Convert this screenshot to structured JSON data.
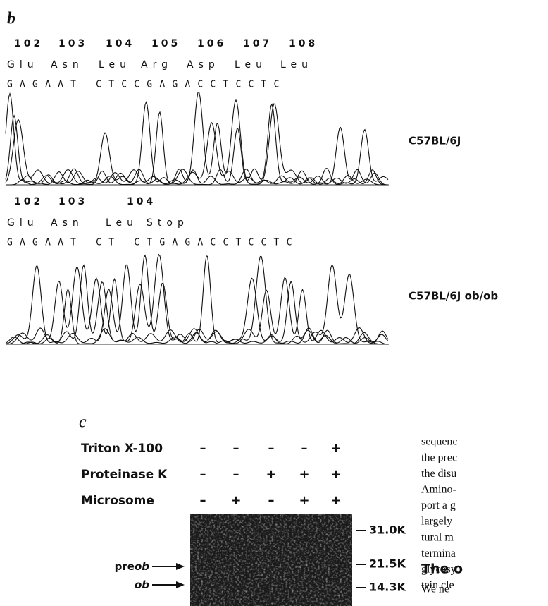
{
  "panel_b": {
    "label": "b",
    "wild_type": {
      "codon_numbers": [
        102,
        103,
        104,
        105,
        106,
        107,
        108
      ],
      "amino_acids": [
        "Glu",
        "Asn",
        "Leu",
        "Arg",
        "Asp",
        "Leu",
        "Leu"
      ],
      "bases": "GAGAAT CTCCGAGACCTCCTC",
      "strain": "C57BL/6J"
    },
    "mutant": {
      "codon_numbers": [
        102,
        103,
        104
      ],
      "amino_acids": [
        "Glu",
        "Asn",
        "Leu",
        "Stop"
      ],
      "bases": "GAGAAT CT CTGAGACCTCCTC",
      "strain": "C57BL/6J ob/ob"
    }
  },
  "panel_c": {
    "label": "c",
    "rows": [
      {
        "name": "Triton X-100",
        "signs": [
          "–",
          "–",
          "–",
          "–",
          "+"
        ]
      },
      {
        "name": "Proteinase K",
        "signs": [
          "–",
          "–",
          "+",
          "+",
          "+"
        ]
      },
      {
        "name": "Microsome",
        "signs": [
          "–",
          "+",
          "–",
          "+",
          "+"
        ]
      }
    ],
    "bands": [
      {
        "prefix": "pre",
        "italic": "ob"
      },
      {
        "prefix": "",
        "italic": "ob"
      }
    ],
    "markers": [
      "31.0K",
      "21.5K",
      "14.3K"
    ]
  },
  "body_text": {
    "lines": [
      "sequenc",
      "the prec",
      "the disu",
      "Amino-",
      "port a g",
      "largely",
      "tural m",
      "termina",
      "glycosy",
      "tein cle"
    ],
    "heading": "The o",
    "last_line": "We ne"
  }
}
